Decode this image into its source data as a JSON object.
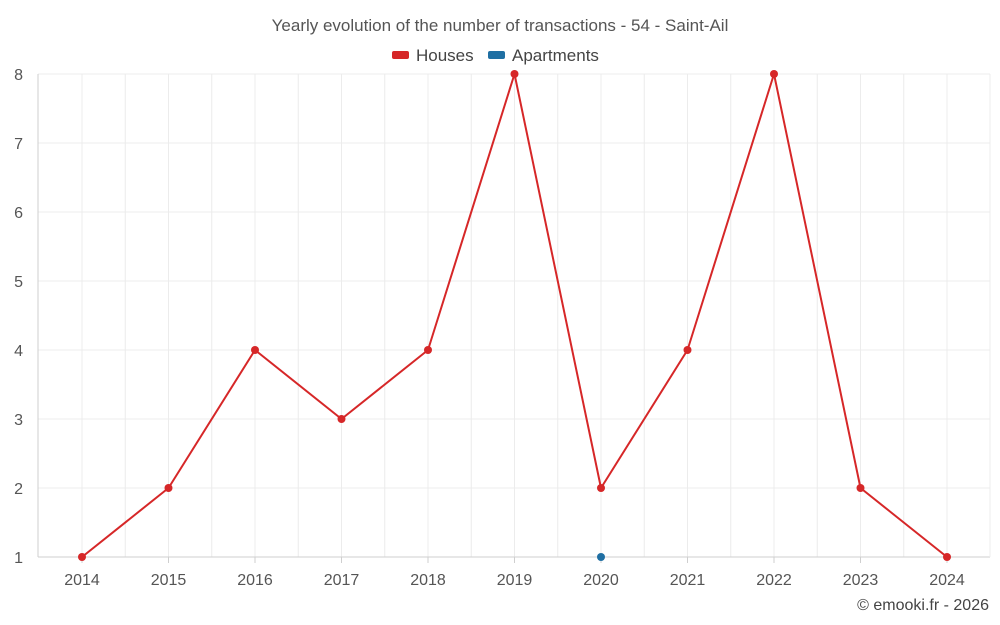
{
  "chart_data": {
    "type": "line",
    "title": "Yearly evolution of the number of transactions - 54 - Saint-Ail",
    "xlabel": "",
    "ylabel": "",
    "categories": [
      "2014",
      "2015",
      "2016",
      "2017",
      "2018",
      "2019",
      "2020",
      "2021",
      "2022",
      "2023",
      "2024"
    ],
    "y_ticks": [
      "1",
      "2",
      "3",
      "4",
      "5",
      "6",
      "7",
      "8"
    ],
    "ylim": [
      1,
      8
    ],
    "grid": true,
    "legend_position": "top-center",
    "series": [
      {
        "name": "Houses",
        "color": "#d62728",
        "values": [
          1,
          2,
          4,
          3,
          4,
          8,
          2,
          4,
          8,
          2,
          1
        ]
      },
      {
        "name": "Apartments",
        "color": "#1f6fa3",
        "values": [
          null,
          null,
          null,
          null,
          null,
          null,
          1,
          null,
          null,
          null,
          null
        ]
      }
    ]
  },
  "credit": "© emooki.fr - 2026"
}
